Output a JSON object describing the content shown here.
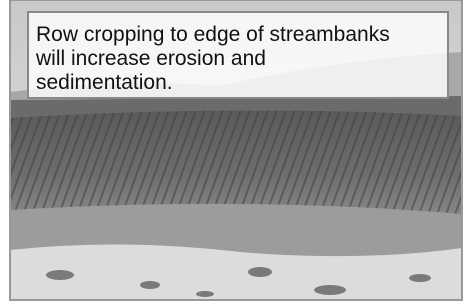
{
  "caption": {
    "lines": [
      "Row cropping to edge of streambanks",
      "will increase erosion and",
      "sedimentation."
    ]
  }
}
